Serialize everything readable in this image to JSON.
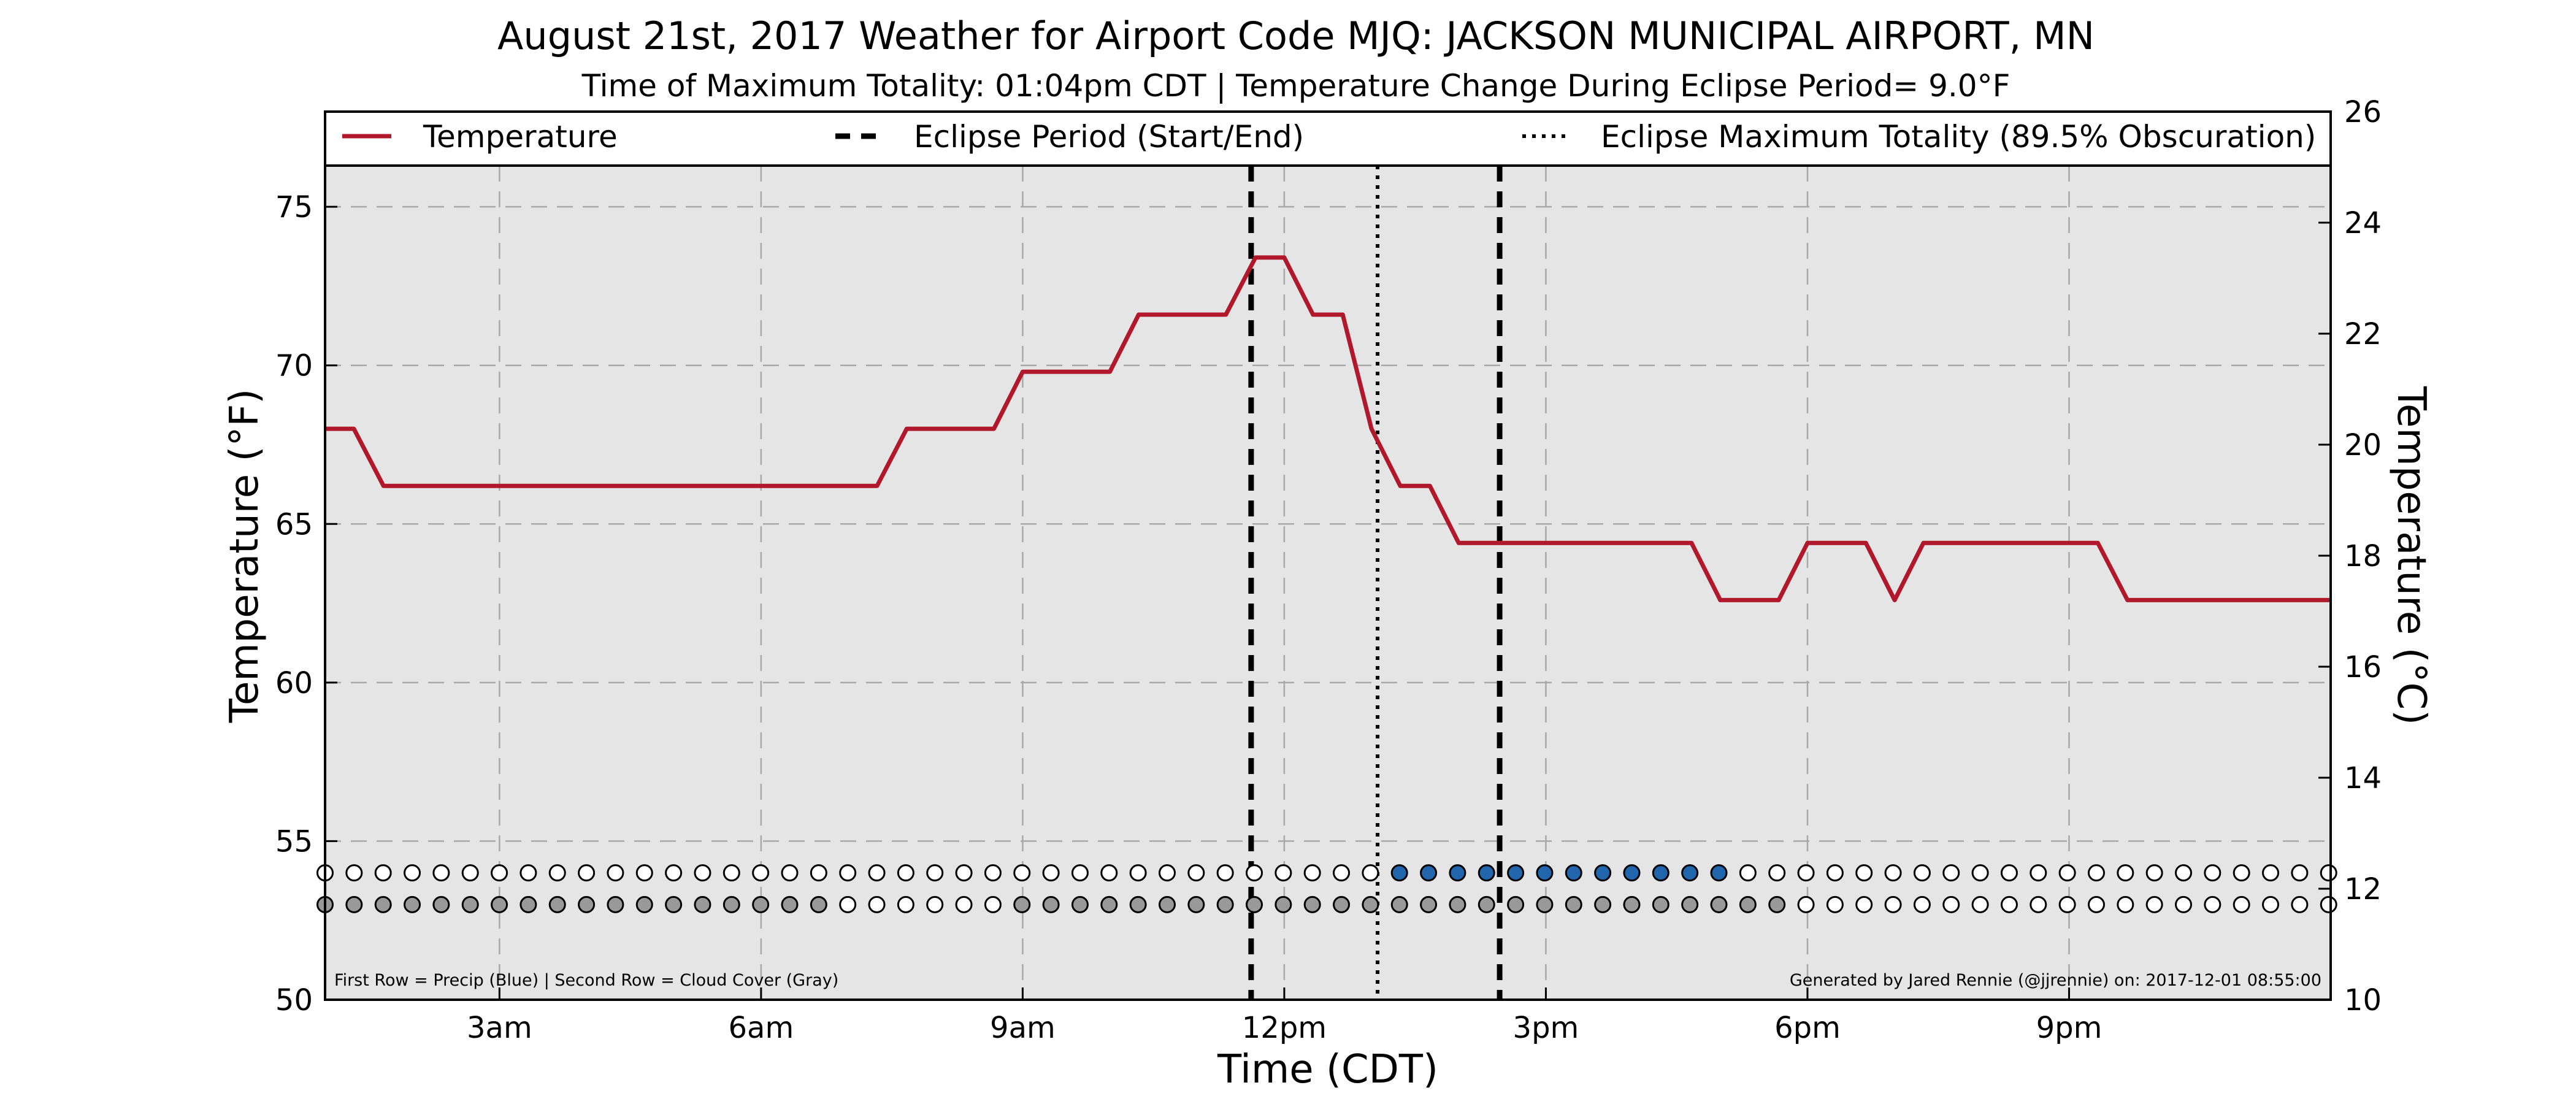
{
  "chart_data": {
    "type": "line",
    "title": "August 21st, 2017 Weather for Airport Code MJQ: JACKSON MUNICIPAL AIRPORT, MN",
    "subtitle": "Time of Maximum Totality: 01:04pm CDT | Temperature Change During Eclipse Period= 9.0°F",
    "xlabel": "Time (CDT)",
    "ylabel_left": "Temperature (°F)",
    "ylabel_right": "Temperature (°C)",
    "xlim": [
      1.0,
      24.0
    ],
    "ylim": [
      50,
      78
    ],
    "ylim_right": [
      10,
      26
    ],
    "x_unit": "hours (CDT, decimal)",
    "x_ticks": [
      3,
      6,
      9,
      12,
      15,
      18,
      21
    ],
    "x_tick_labels": [
      "3am",
      "6am",
      "9am",
      "12pm",
      "3pm",
      "6pm",
      "9pm"
    ],
    "y_ticks": [
      50,
      55,
      60,
      65,
      70,
      75
    ],
    "y_tick_labels": [
      "50",
      "55",
      "60",
      "65",
      "70",
      "75"
    ],
    "y_ticks_right": [
      10,
      12,
      14,
      16,
      18,
      20,
      22,
      24,
      26
    ],
    "y_tick_labels_right": [
      "10",
      "12",
      "14",
      "16",
      "18",
      "20",
      "22",
      "24",
      "26"
    ],
    "grid": true,
    "legend_position": "top",
    "legend": [
      {
        "label": "Temperature",
        "style": "solid"
      },
      {
        "label": "Eclipse Period (Start/End)",
        "style": "dashed"
      },
      {
        "label": "Eclipse Maximum Totality (89.5% Obscuration)",
        "style": "dotted"
      }
    ],
    "series": [
      {
        "name": "Temperature",
        "color": "#b2182b",
        "x": [
          1.0,
          1.33,
          1.67,
          7.33,
          7.67,
          8.67,
          9.0,
          9.33,
          9.67,
          10.0,
          10.33,
          11.0,
          11.33,
          11.67,
          12.0,
          12.33,
          12.67,
          13.0,
          13.33,
          13.67,
          14.0,
          14.33,
          16.67,
          17.0,
          17.33,
          17.67,
          18.0,
          18.33,
          18.67,
          19.0,
          19.33,
          20.0,
          21.33,
          21.67,
          22.0,
          24.0
        ],
        "y": [
          68.0,
          68.0,
          66.2,
          66.2,
          68.0,
          68.0,
          69.8,
          69.8,
          69.8,
          69.8,
          71.6,
          71.6,
          71.6,
          73.4,
          73.4,
          71.6,
          71.6,
          68.0,
          66.2,
          66.2,
          64.4,
          64.4,
          64.4,
          62.6,
          62.6,
          62.6,
          64.4,
          64.4,
          64.4,
          62.6,
          64.4,
          64.4,
          64.4,
          62.6,
          62.6,
          62.6
        ]
      }
    ],
    "eclipse_start": 11.62,
    "eclipse_end": 14.47,
    "max_totality": 13.07,
    "precip_row": {
      "y": 54.0,
      "x_start": 1.0,
      "x_step": 0.333,
      "count": 70,
      "filled_color": "#2166ac",
      "filled_from": 13.0,
      "filled_to": 17.0
    },
    "cloud_row": {
      "y": 53.0,
      "x_start": 1.0,
      "x_step": 0.333,
      "count": 70,
      "filled_color": "#999999",
      "filled_ranges": [
        [
          1.0,
          6.67
        ],
        [
          9.0,
          17.67
        ]
      ]
    }
  },
  "footer": {
    "left_note": "First Row = Precip (Blue) | Second Row = Cloud Cover (Gray)",
    "right_note": "Generated by Jared Rennie (@jjrennie) on: 2017-12-01 08:55:00"
  }
}
